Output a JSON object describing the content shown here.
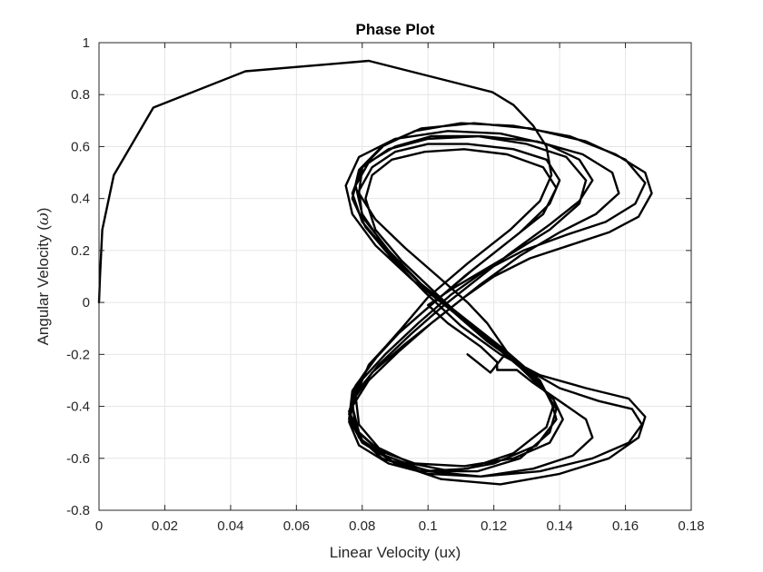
{
  "chart_data": {
    "type": "line",
    "title": "Phase Plot",
    "xlabel": "Linear Velocity (ux)",
    "ylabel_prefix": "Angular Velocity (",
    "ylabel_symbol": "ω",
    "ylabel_suffix": ")",
    "xlim": [
      0,
      0.18
    ],
    "ylim": [
      -0.8,
      1.0
    ],
    "xticks": [
      0,
      0.02,
      0.04,
      0.06,
      0.08,
      0.1,
      0.12,
      0.14,
      0.16,
      0.18
    ],
    "xtick_labels": [
      "0",
      "0.02",
      "0.04",
      "0.06",
      "0.08",
      "0.1",
      "0.12",
      "0.14",
      "0.16",
      "0.18"
    ],
    "yticks": [
      -0.8,
      -0.6,
      -0.4,
      -0.2,
      0,
      0.2,
      0.4,
      0.6,
      0.8,
      1.0
    ],
    "ytick_labels": [
      "-0.8",
      "-0.6",
      "-0.4",
      "-0.2",
      "0",
      "0.2",
      "0.4",
      "0.6",
      "0.8",
      "1"
    ],
    "grid": true,
    "line_color": "#000000",
    "series": [
      {
        "points": [
          [
            0.0,
            0.0
          ],
          [
            0.0003,
            0.1
          ],
          [
            0.001,
            0.28
          ],
          [
            0.0045,
            0.49
          ],
          [
            0.0165,
            0.75
          ],
          [
            0.0445,
            0.89
          ],
          [
            0.082,
            0.93
          ],
          [
            0.1195,
            0.81
          ],
          [
            0.126,
            0.76
          ],
          [
            0.132,
            0.68
          ],
          [
            0.136,
            0.6
          ],
          [
            0.1375,
            0.49
          ],
          [
            0.134,
            0.39
          ],
          [
            0.125,
            0.28
          ],
          [
            0.112,
            0.15
          ],
          [
            0.1,
            0.02
          ],
          [
            0.092,
            -0.1
          ],
          [
            0.085,
            -0.2
          ],
          [
            0.078,
            -0.32
          ],
          [
            0.076,
            -0.43
          ],
          [
            0.079,
            -0.52
          ],
          [
            0.086,
            -0.6
          ],
          [
            0.098,
            -0.65
          ],
          [
            0.112,
            -0.64
          ],
          [
            0.126,
            -0.58
          ],
          [
            0.136,
            -0.48
          ],
          [
            0.138,
            -0.4
          ],
          [
            0.134,
            -0.3
          ],
          [
            0.124,
            -0.19
          ],
          [
            0.11,
            -0.05
          ],
          [
            0.098,
            0.07
          ],
          [
            0.088,
            0.2
          ],
          [
            0.08,
            0.33
          ],
          [
            0.079,
            0.43
          ],
          [
            0.083,
            0.52
          ],
          [
            0.09,
            0.58
          ],
          [
            0.1,
            0.61
          ],
          [
            0.112,
            0.61
          ],
          [
            0.126,
            0.59
          ],
          [
            0.136,
            0.55
          ],
          [
            0.14,
            0.47
          ],
          [
            0.137,
            0.38
          ],
          [
            0.128,
            0.27
          ],
          [
            0.114,
            0.13
          ],
          [
            0.1,
            -0.02
          ],
          [
            0.09,
            -0.13
          ],
          [
            0.082,
            -0.24
          ],
          [
            0.078,
            -0.36
          ],
          [
            0.079,
            -0.47
          ],
          [
            0.085,
            -0.56
          ],
          [
            0.095,
            -0.62
          ],
          [
            0.107,
            -0.65
          ],
          [
            0.12,
            -0.62
          ],
          [
            0.133,
            -0.55
          ],
          [
            0.139,
            -0.45
          ],
          [
            0.137,
            -0.36
          ],
          [
            0.128,
            -0.25
          ],
          [
            0.113,
            -0.09
          ],
          [
            0.102,
            0.04
          ],
          [
            0.092,
            0.16
          ],
          [
            0.084,
            0.28
          ],
          [
            0.081,
            0.4
          ],
          [
            0.083,
            0.49
          ],
          [
            0.089,
            0.55
          ],
          [
            0.099,
            0.58
          ],
          [
            0.111,
            0.59
          ],
          [
            0.124,
            0.57
          ],
          [
            0.135,
            0.52
          ],
          [
            0.139,
            0.44
          ],
          [
            0.135,
            0.34
          ],
          [
            0.124,
            0.23
          ],
          [
            0.111,
            0.1
          ],
          [
            0.1,
            -0.02
          ],
          [
            0.091,
            -0.12
          ],
          [
            0.083,
            -0.23
          ],
          [
            0.077,
            -0.34
          ],
          [
            0.076,
            -0.45
          ],
          [
            0.08,
            -0.54
          ],
          [
            0.089,
            -0.61
          ],
          [
            0.101,
            -0.65
          ],
          [
            0.115,
            -0.65
          ],
          [
            0.128,
            -0.6
          ],
          [
            0.137,
            -0.5
          ],
          [
            0.139,
            -0.41
          ],
          [
            0.134,
            -0.31
          ],
          [
            0.123,
            -0.19
          ],
          [
            0.109,
            -0.05
          ],
          [
            0.097,
            0.08
          ],
          [
            0.087,
            0.21
          ],
          [
            0.08,
            0.34
          ],
          [
            0.078,
            0.45
          ],
          [
            0.082,
            0.54
          ],
          [
            0.09,
            0.6
          ],
          [
            0.101,
            0.64
          ],
          [
            0.115,
            0.64
          ],
          [
            0.13,
            0.61
          ],
          [
            0.142,
            0.56
          ],
          [
            0.148,
            0.47
          ],
          [
            0.146,
            0.38
          ],
          [
            0.137,
            0.28
          ],
          [
            0.123,
            0.17
          ],
          [
            0.107,
            0.05
          ],
          [
            0.1,
            -0.01
          ],
          [
            0.106,
            -0.08
          ],
          [
            0.116,
            -0.17
          ],
          [
            0.121,
            -0.23
          ],
          [
            0.121,
            -0.26
          ],
          [
            0.127,
            -0.26
          ],
          [
            0.132,
            -0.31
          ],
          [
            0.14,
            -0.38
          ],
          [
            0.148,
            -0.45
          ],
          [
            0.15,
            -0.52
          ],
          [
            0.144,
            -0.59
          ],
          [
            0.132,
            -0.64
          ],
          [
            0.116,
            -0.67
          ],
          [
            0.1,
            -0.66
          ],
          [
            0.088,
            -0.62
          ],
          [
            0.079,
            -0.55
          ],
          [
            0.076,
            -0.46
          ],
          [
            0.078,
            -0.35
          ],
          [
            0.085,
            -0.24
          ],
          [
            0.095,
            -0.12
          ],
          [
            0.104,
            -0.02
          ],
          [
            0.113,
            0.07
          ],
          [
            0.125,
            0.19
          ],
          [
            0.137,
            0.3
          ],
          [
            0.146,
            0.39
          ],
          [
            0.15,
            0.47
          ],
          [
            0.146,
            0.55
          ],
          [
            0.136,
            0.61
          ],
          [
            0.122,
            0.65
          ],
          [
            0.106,
            0.66
          ],
          [
            0.09,
            0.63
          ],
          [
            0.079,
            0.56
          ],
          [
            0.075,
            0.45
          ],
          [
            0.077,
            0.34
          ],
          [
            0.084,
            0.22
          ],
          [
            0.095,
            0.09
          ],
          [
            0.108,
            -0.04
          ],
          [
            0.12,
            -0.16
          ],
          [
            0.13,
            -0.27
          ],
          [
            0.138,
            -0.37
          ],
          [
            0.141,
            -0.45
          ],
          [
            0.137,
            -0.54
          ],
          [
            0.126,
            -0.6
          ],
          [
            0.111,
            -0.63
          ],
          [
            0.096,
            -0.62
          ],
          [
            0.085,
            -0.57
          ],
          [
            0.078,
            -0.49
          ],
          [
            0.077,
            -0.38
          ],
          [
            0.083,
            -0.27
          ],
          [
            0.093,
            -0.16
          ],
          [
            0.105,
            -0.04
          ],
          [
            0.116,
            0.07
          ],
          [
            0.128,
            0.18
          ],
          [
            0.14,
            0.27
          ],
          [
            0.151,
            0.34
          ],
          [
            0.158,
            0.42
          ],
          [
            0.156,
            0.5
          ],
          [
            0.147,
            0.57
          ],
          [
            0.133,
            0.62
          ],
          [
            0.116,
            0.64
          ],
          [
            0.1,
            0.63
          ],
          [
            0.088,
            0.59
          ],
          [
            0.08,
            0.52
          ],
          [
            0.077,
            0.42
          ],
          [
            0.08,
            0.31
          ],
          [
            0.088,
            0.19
          ],
          [
            0.098,
            0.07
          ],
          [
            0.108,
            -0.04
          ],
          [
            0.118,
            -0.15
          ],
          [
            0.129,
            -0.25
          ],
          [
            0.14,
            -0.33
          ],
          [
            0.152,
            -0.38
          ],
          [
            0.162,
            -0.41
          ],
          [
            0.165,
            -0.47
          ],
          [
            0.161,
            -0.54
          ],
          [
            0.15,
            -0.6
          ],
          [
            0.134,
            -0.65
          ],
          [
            0.116,
            -0.67
          ],
          [
            0.1,
            -0.65
          ],
          [
            0.087,
            -0.59
          ],
          [
            0.079,
            -0.5
          ],
          [
            0.077,
            -0.4
          ],
          [
            0.082,
            -0.3
          ],
          [
            0.091,
            -0.19
          ],
          [
            0.101,
            -0.08
          ],
          [
            0.111,
            0.02
          ],
          [
            0.12,
            0.1
          ],
          [
            0.131,
            0.17
          ],
          [
            0.143,
            0.22
          ],
          [
            0.155,
            0.27
          ],
          [
            0.164,
            0.33
          ],
          [
            0.168,
            0.42
          ],
          [
            0.166,
            0.5
          ],
          [
            0.157,
            0.57
          ],
          [
            0.143,
            0.64
          ],
          [
            0.126,
            0.68
          ],
          [
            0.11,
            0.69
          ],
          [
            0.096,
            0.66
          ],
          [
            0.086,
            0.6
          ],
          [
            0.079,
            0.51
          ],
          [
            0.077,
            0.4
          ],
          [
            0.081,
            0.29
          ],
          [
            0.089,
            0.17
          ],
          [
            0.099,
            0.04
          ],
          [
            0.11,
            -0.09
          ],
          [
            0.122,
            -0.2
          ],
          [
            0.134,
            -0.28
          ],
          [
            0.148,
            -0.33
          ],
          [
            0.161,
            -0.37
          ],
          [
            0.166,
            -0.44
          ],
          [
            0.164,
            -0.52
          ],
          [
            0.155,
            -0.6
          ],
          [
            0.14,
            -0.66
          ],
          [
            0.122,
            -0.7
          ],
          [
            0.104,
            -0.68
          ],
          [
            0.09,
            -0.62
          ],
          [
            0.08,
            -0.53
          ],
          [
            0.076,
            -0.42
          ],
          [
            0.079,
            -0.31
          ],
          [
            0.087,
            -0.2
          ],
          [
            0.097,
            -0.08
          ],
          [
            0.107,
            0.03
          ],
          [
            0.117,
            0.12
          ],
          [
            0.129,
            0.2
          ],
          [
            0.142,
            0.26
          ],
          [
            0.154,
            0.31
          ],
          [
            0.163,
            0.38
          ],
          [
            0.166,
            0.46
          ],
          [
            0.16,
            0.55
          ],
          [
            0.148,
            0.62
          ],
          [
            0.131,
            0.67
          ],
          [
            0.114,
            0.69
          ],
          [
            0.098,
            0.67
          ],
          [
            0.087,
            0.61
          ],
          [
            0.08,
            0.52
          ],
          [
            0.079,
            0.42
          ],
          [
            0.084,
            0.32
          ],
          [
            0.093,
            0.21
          ],
          [
            0.103,
            0.1
          ],
          [
            0.112,
            0.0
          ],
          [
            0.118,
            -0.08
          ],
          [
            0.124,
            -0.19
          ],
          [
            0.119,
            -0.27
          ],
          [
            0.112,
            -0.2
          ]
        ]
      }
    ]
  }
}
